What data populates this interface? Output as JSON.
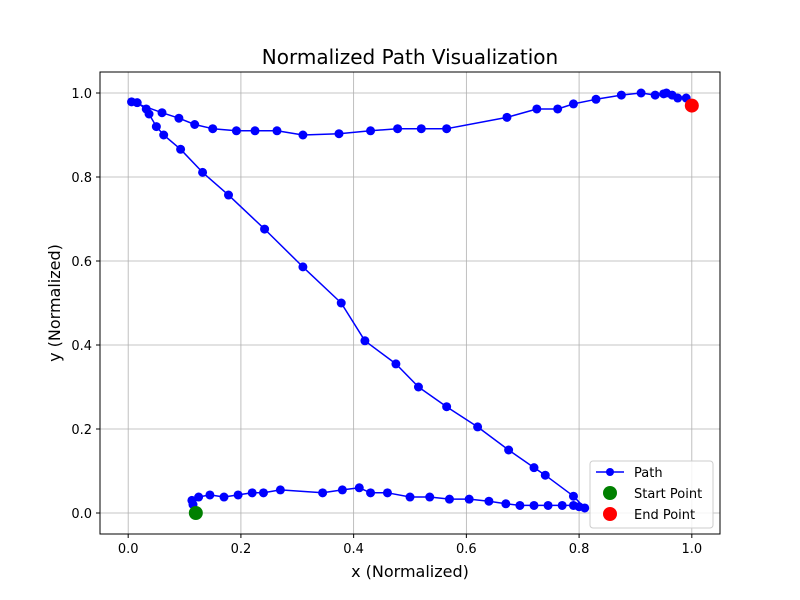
{
  "chart_data": {
    "type": "line",
    "title": "Normalized Path Visualization",
    "xlabel": "x (Normalized)",
    "ylabel": "y (Normalized)",
    "xlim": [
      -0.05,
      1.05
    ],
    "ylim": [
      -0.05,
      1.05
    ],
    "xticks": [
      0.0,
      0.2,
      0.4,
      0.6,
      0.8,
      1.0
    ],
    "yticks": [
      0.0,
      0.2,
      0.4,
      0.6,
      0.8,
      1.0
    ],
    "xtick_labels": [
      "0.0",
      "0.2",
      "0.4",
      "0.6",
      "0.8",
      "1.0"
    ],
    "ytick_labels": [
      "0.0",
      "0.2",
      "0.4",
      "0.6",
      "0.8",
      "1.0"
    ],
    "grid": true,
    "legend_position": "lower-right",
    "colors": {
      "path": "#0000ff",
      "start": "#008000",
      "end": "#ff0000",
      "grid": "#b0b0b0"
    },
    "series": [
      {
        "name": "Path",
        "style": "line-with-markers",
        "x": [
          0.12,
          0.113,
          0.115,
          0.125,
          0.145,
          0.17,
          0.195,
          0.22,
          0.24,
          0.27,
          0.345,
          0.38,
          0.41,
          0.43,
          0.46,
          0.5,
          0.535,
          0.57,
          0.605,
          0.64,
          0.67,
          0.695,
          0.72,
          0.745,
          0.77,
          0.79,
          0.8,
          0.81,
          0.79,
          0.74,
          0.72,
          0.675,
          0.62,
          0.565,
          0.515,
          0.475,
          0.42,
          0.378,
          0.31,
          0.242,
          0.178,
          0.132,
          0.093,
          0.063,
          0.05,
          0.037,
          0.032,
          0.016,
          0.006,
          0.06,
          0.09,
          0.118,
          0.15,
          0.192,
          0.225,
          0.264,
          0.31,
          0.374,
          0.43,
          0.478,
          0.52,
          0.565,
          0.672,
          0.725,
          0.762,
          0.79,
          0.83,
          0.875,
          0.91,
          0.935,
          0.95,
          0.955,
          0.965,
          0.975,
          0.99,
          1.0
        ],
        "y": [
          0.0,
          0.03,
          0.02,
          0.038,
          0.043,
          0.038,
          0.043,
          0.048,
          0.048,
          0.055,
          0.048,
          0.055,
          0.06,
          0.048,
          0.048,
          0.038,
          0.038,
          0.033,
          0.033,
          0.028,
          0.022,
          0.018,
          0.018,
          0.018,
          0.018,
          0.018,
          0.015,
          0.012,
          0.04,
          0.09,
          0.108,
          0.15,
          0.205,
          0.253,
          0.3,
          0.355,
          0.41,
          0.5,
          0.586,
          0.676,
          0.757,
          0.811,
          0.866,
          0.9,
          0.92,
          0.95,
          0.962,
          0.977,
          0.979,
          0.953,
          0.94,
          0.925,
          0.915,
          0.91,
          0.91,
          0.91,
          0.9,
          0.903,
          0.91,
          0.915,
          0.915,
          0.915,
          0.942,
          0.962,
          0.962,
          0.974,
          0.985,
          0.995,
          1.0,
          0.995,
          0.998,
          1.0,
          0.995,
          0.988,
          0.988,
          0.97
        ]
      }
    ],
    "points": [
      {
        "name": "Start Point",
        "x": 0.12,
        "y": 0.0
      },
      {
        "name": "End Point",
        "x": 1.0,
        "y": 0.97
      }
    ]
  }
}
